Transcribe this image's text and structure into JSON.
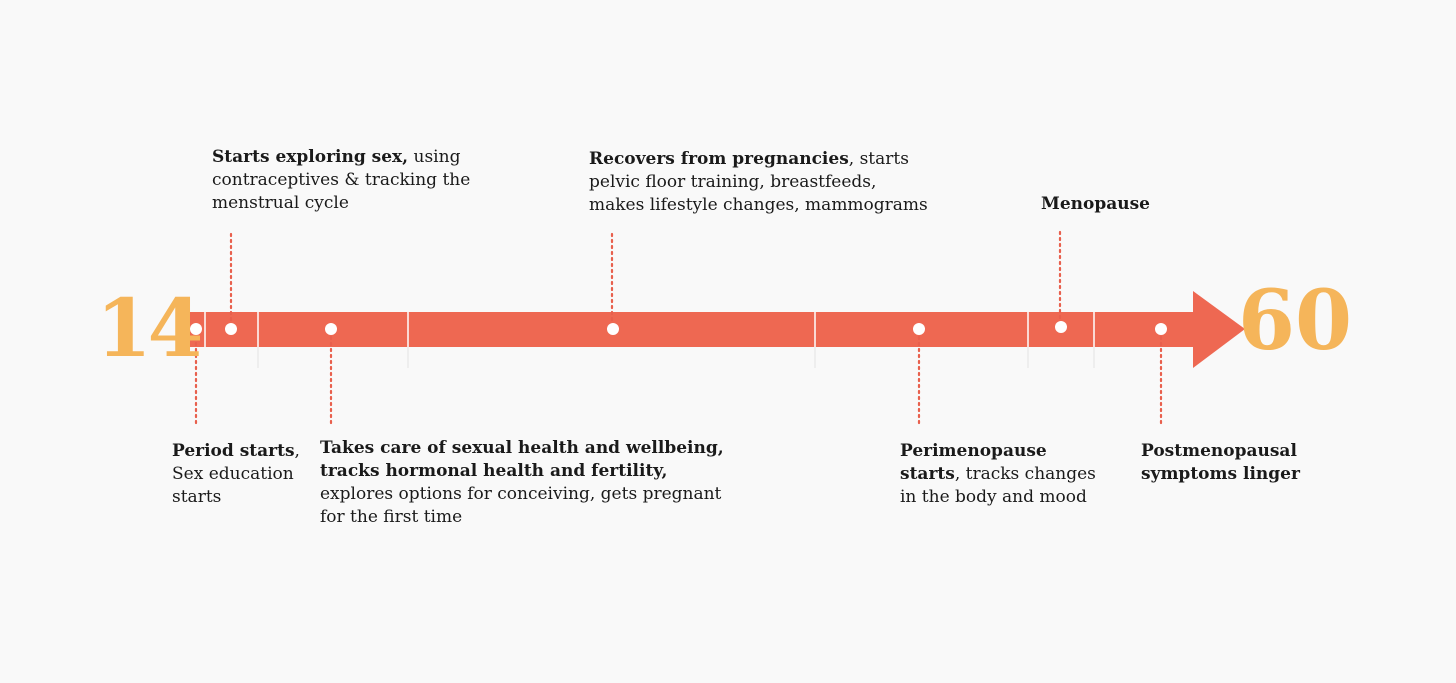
{
  "timeline": {
    "start_age": "14",
    "end_age": "60",
    "colors": {
      "bar": "#ee6852",
      "accent": "#f5b55a",
      "dot": "#ffffff",
      "connector": "#e8604d"
    },
    "events": [
      {
        "id": "period",
        "bold": "Period starts",
        "rest": ", Sex education starts"
      },
      {
        "id": "exploring",
        "bold": "Starts exploring sex,",
        "rest": " using contraceptives & tracking  the menstrual cycle"
      },
      {
        "id": "care",
        "bold": "Takes care of sexual health and wellbeing, tracks hormonal health and fertility,",
        "rest": " explores options for conceiving, gets pregnant for the first time"
      },
      {
        "id": "recovers",
        "bold": "Recovers from pregnancies",
        "rest": ", starts pelvic floor training, breastfeeds, makes lifestyle changes, mammograms"
      },
      {
        "id": "perimenopause",
        "bold": "Perimenopause starts",
        "rest": ", tracks changes in the body and mood"
      },
      {
        "id": "menopause",
        "bold": "Menopause",
        "rest": ""
      },
      {
        "id": "postmenopause",
        "bold": "Postmenopausal symptoms linger",
        "rest": ""
      }
    ]
  }
}
